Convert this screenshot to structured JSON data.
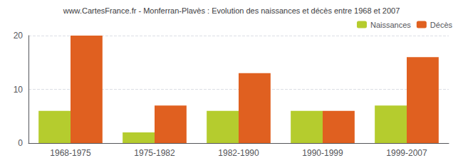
{
  "chart_data": {
    "type": "bar",
    "title": "www.CartesFrance.fr - Monferran-Plavès : Evolution des naissances et décès entre 1968 et 2007",
    "categories": [
      "1968-1975",
      "1975-1982",
      "1982-1990",
      "1990-1999",
      "1999-2007"
    ],
    "series": [
      {
        "name": "Naissances",
        "color": "#b5cc2e",
        "values": [
          6,
          2,
          6,
          6,
          7
        ]
      },
      {
        "name": "Décès",
        "color": "#e06020",
        "values": [
          20,
          7,
          13,
          6,
          16
        ]
      }
    ],
    "ylim": [
      0,
      20
    ],
    "yticks": [
      0,
      10,
      20
    ],
    "grid": true,
    "legend": "upper right"
  }
}
